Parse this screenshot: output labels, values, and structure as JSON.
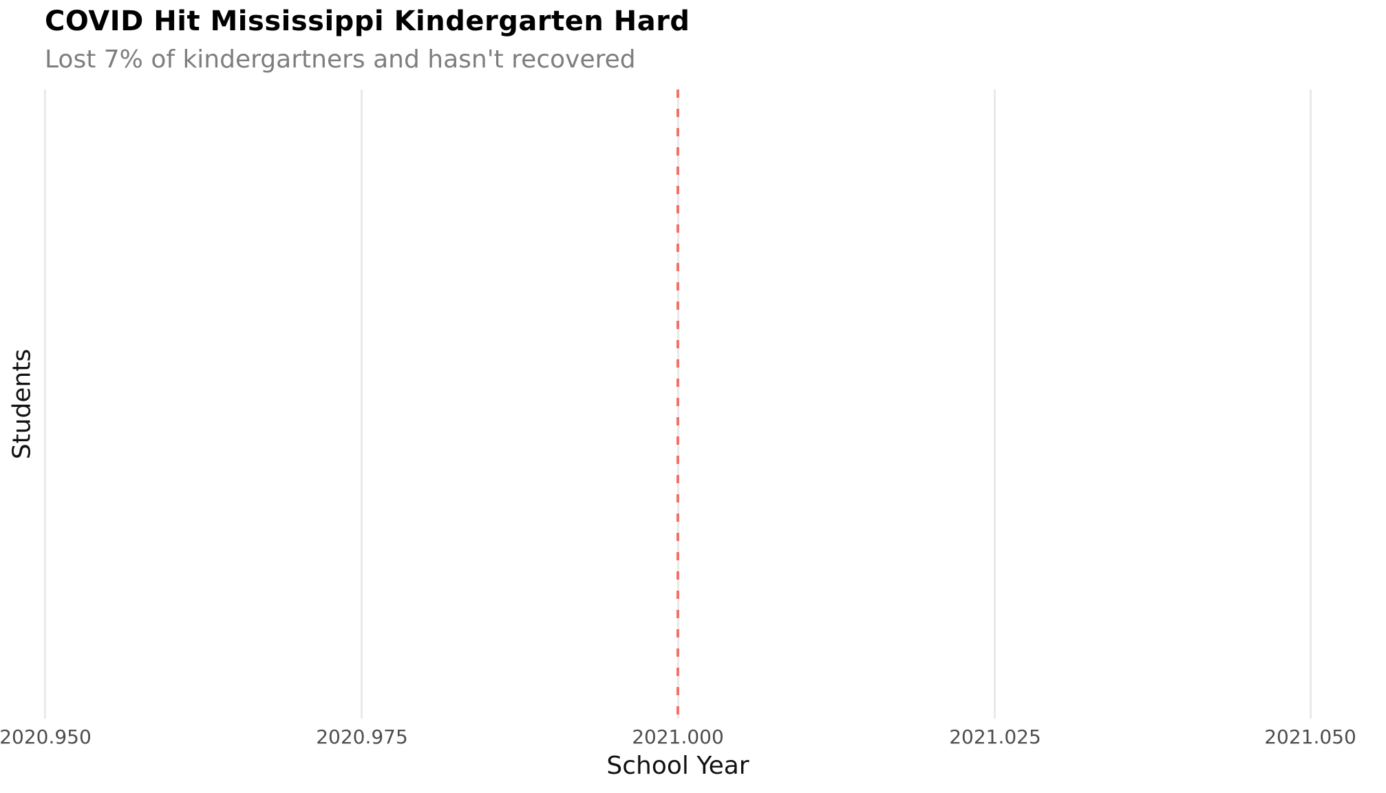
{
  "chart_data": {
    "type": "line",
    "title": "COVID Hit Mississippi Kindergarten Hard",
    "subtitle": "Lost 7% of kindergartners and hasn't recovered",
    "xlabel": "School Year",
    "ylabel": "Students",
    "xlim": [
      2020.95,
      2021.05
    ],
    "x_tick_values": [
      2020.95,
      2020.975,
      2021.0,
      2021.025,
      2021.05
    ],
    "x_tick_labels": [
      "2020.950",
      "2020.975",
      "2021.000",
      "2021.025",
      "2021.050"
    ],
    "y_tick_labels": [],
    "grid": "vertical-gridlines-only",
    "legend": "none",
    "series": [],
    "reference_line": {
      "orientation": "vertical",
      "x": 2021.0,
      "style": "dashed",
      "color": "#f4716b"
    },
    "colors": {
      "background": "#ffffff",
      "title": "#000000",
      "subtitle": "#7e7e7e",
      "tick_label": "#4d4d4d",
      "axis_title": "#111111",
      "gridline": "#e9e9e9",
      "reference_line": "#f4716b"
    }
  }
}
